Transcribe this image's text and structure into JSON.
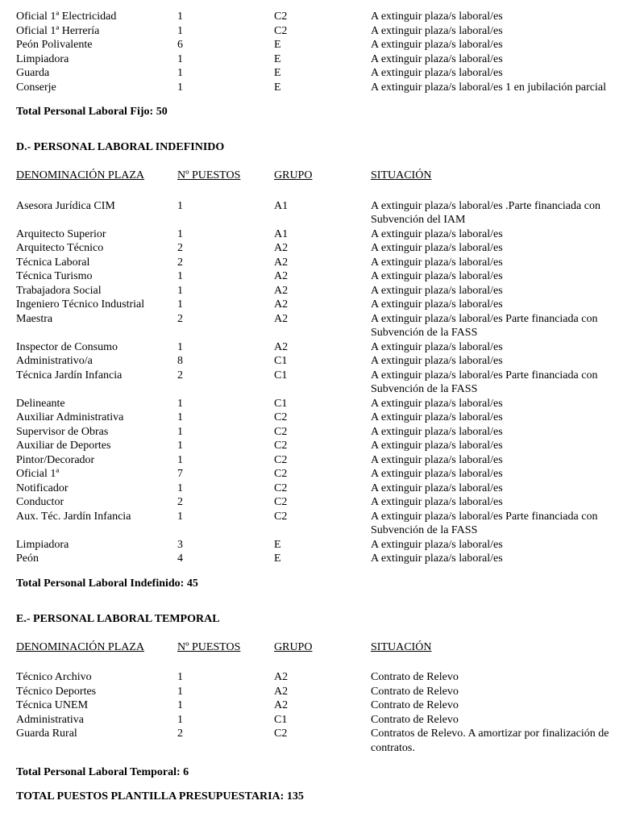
{
  "fontFamily": "Times New Roman",
  "headers": {
    "denom": "DENOMINACIÓN PLAZA",
    "num": "Nº PUESTOS",
    "grupo": "GRUPO",
    "sit": "SITUACIÓN"
  },
  "topRows": [
    {
      "denom": "Oficial 1ª Electricidad",
      "num": "1",
      "grupo": "C2",
      "sit": "A extinguir plaza/s laboral/es"
    },
    {
      "denom": "Oficial 1ª Herrería",
      "num": "1",
      "grupo": "C2",
      "sit": "A extinguir plaza/s laboral/es"
    },
    {
      "denom": "Peón Polivalente",
      "num": "6",
      "grupo": "E",
      "sit": "A extinguir plaza/s laboral/es"
    },
    {
      "denom": "Limpiadora",
      "num": "1",
      "grupo": "E",
      "sit": "A extinguir plaza/s laboral/es"
    },
    {
      "denom": "Guarda",
      "num": "1",
      "grupo": "E",
      "sit": "A extinguir plaza/s laboral/es"
    },
    {
      "denom": "Conserje",
      "num": "1",
      "grupo": "E",
      "sit": "A extinguir plaza/s laboral/es 1 en jubilación parcial"
    }
  ],
  "topTotal": "Total Personal Laboral Fijo: 50",
  "sectionD": {
    "title": "D.-  PERSONAL LABORAL INDEFINIDO",
    "rows": [
      {
        "denom": "Asesora Jurídica CIM",
        "num": "1",
        "grupo": "A1",
        "sit": "A extinguir plaza/s laboral/es .Parte financiada con Subvención del IAM"
      },
      {
        "denom": "Arquitecto Superior",
        "num": "1",
        "grupo": "A1",
        "sit": "A extinguir plaza/s laboral/es"
      },
      {
        "denom": "Arquitecto Técnico",
        "num": "2",
        "grupo": "A2",
        "sit": "A extinguir plaza/s laboral/es"
      },
      {
        "denom": "Técnica Laboral",
        "num": "2",
        "grupo": "A2",
        "sit": "A extinguir plaza/s laboral/es"
      },
      {
        "denom": "Técnica Turismo",
        "num": "1",
        "grupo": "A2",
        "sit": "A extinguir plaza/s laboral/es"
      },
      {
        "denom": "Trabajadora Social",
        "num": "1",
        "grupo": "A2",
        "sit": "A extinguir plaza/s laboral/es"
      },
      {
        "denom": "Ingeniero Técnico Industrial",
        "num": "1",
        "grupo": "A2",
        "sit": "A extinguir plaza/s laboral/es"
      },
      {
        "denom": "Maestra",
        "num": "2",
        "grupo": "A2",
        "sit": "A extinguir plaza/s laboral/es Parte financiada con Subvención de la FASS"
      },
      {
        "denom": "Inspector de Consumo",
        "num": "1",
        "grupo": "A2",
        "sit": "A extinguir plaza/s laboral/es"
      },
      {
        "denom": "Administrativo/a",
        "num": "8",
        "grupo": "C1",
        "sit": "A extinguir plaza/s laboral/es"
      },
      {
        "denom": "Técnica Jardín Infancia",
        "num": "2",
        "grupo": "C1",
        "sit": "A extinguir plaza/s laboral/es Parte financiada con Subvención de la FASS"
      },
      {
        "denom": "Delineante",
        "num": "1",
        "grupo": "C1",
        "sit": "A extinguir plaza/s laboral/es"
      },
      {
        "denom": "Auxiliar Administrativa",
        "num": "1",
        "grupo": "C2",
        "sit": "A extinguir plaza/s laboral/es"
      },
      {
        "denom": "Supervisor de Obras",
        "num": "1",
        "grupo": "C2",
        "sit": "A extinguir plaza/s laboral/es"
      },
      {
        "denom": "Auxiliar de Deportes",
        "num": "1",
        "grupo": "C2",
        "sit": "A extinguir plaza/s laboral/es"
      },
      {
        "denom": "Pintor/Decorador",
        "num": "1",
        "grupo": "C2",
        "sit": "A extinguir plaza/s laboral/es"
      },
      {
        "denom": "Oficial 1ª",
        "num": "7",
        "grupo": "C2",
        "sit": "A extinguir plaza/s laboral/es"
      },
      {
        "denom": "Notificador",
        "num": "1",
        "grupo": "C2",
        "sit": "A extinguir plaza/s laboral/es"
      },
      {
        "denom": "Conductor",
        "num": "2",
        "grupo": "C2",
        "sit": "A extinguir plaza/s laboral/es"
      },
      {
        "denom": "Aux. Téc. Jardín Infancia",
        "num": "1",
        "grupo": "C2",
        "sit": "A extinguir plaza/s laboral/es Parte financiada con Subvención de la FASS"
      },
      {
        "denom": "Limpiadora",
        "num": "3",
        "grupo": "E",
        "sit": "A extinguir plaza/s laboral/es"
      },
      {
        "denom": "Peón",
        "num": "4",
        "grupo": "E",
        "sit": "A extinguir plaza/s laboral/es"
      }
    ],
    "total": "Total Personal Laboral Indefinido: 45"
  },
  "sectionE": {
    "title": "E.-  PERSONAL LABORAL TEMPORAL",
    "rows": [
      {
        "denom": "Técnico Archivo",
        "num": "1",
        "grupo": "A2",
        "sit": "Contrato de Relevo"
      },
      {
        "denom": "Técnico Deportes",
        "num": "1",
        "grupo": "A2",
        "sit": "Contrato de Relevo"
      },
      {
        "denom": "Técnica UNEM",
        "num": "1",
        "grupo": "A2",
        "sit": "Contrato de Relevo"
      },
      {
        "denom": "Administrativa",
        "num": "1",
        "grupo": "C1",
        "sit": "Contrato de Relevo"
      },
      {
        "denom": "Guarda Rural",
        "num": "2",
        "grupo": "C2",
        "sit": "Contratos de Relevo. A amortizar por finalización de contratos."
      }
    ],
    "total": "Total Personal Laboral Temporal: 6"
  },
  "grandTotal": "TOTAL PUESTOS PLANTILLA PRESUPUESTARIA: 135"
}
